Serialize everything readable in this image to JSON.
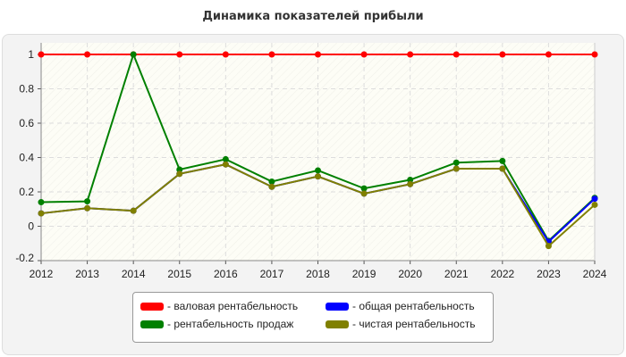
{
  "chart_data": {
    "type": "line",
    "title": "Динамика показателей прибыли",
    "x": [
      "2012",
      "2013",
      "2014",
      "2015",
      "2016",
      "2017",
      "2018",
      "2019",
      "2020",
      "2021",
      "2022",
      "2023",
      "2024"
    ],
    "ylim": [
      -0.2,
      1
    ],
    "yticks": [
      "-0.2",
      "0",
      "0.2",
      "0.4",
      "0.6",
      "0.8",
      "1"
    ],
    "grid": true,
    "legend_position": "bottom",
    "series": [
      {
        "name": "- валовая рентабельность",
        "color": "#ff0000",
        "values": [
          1,
          1,
          1,
          1,
          1,
          1,
          1,
          1,
          1,
          1,
          1,
          1,
          1
        ]
      },
      {
        "name": "- общая рентабельность",
        "color": "#0000ff",
        "values": [
          0.075,
          0.105,
          0.09,
          0.305,
          0.36,
          0.23,
          0.29,
          0.19,
          0.245,
          0.335,
          0.335,
          -0.09,
          0.16
        ]
      },
      {
        "name": "- рентабельность продаж",
        "color": "#008000",
        "values": [
          0.14,
          0.145,
          1,
          0.33,
          0.39,
          0.26,
          0.325,
          0.22,
          0.27,
          0.37,
          0.38,
          -0.085,
          0.165
        ]
      },
      {
        "name": "- чистая рентабельность",
        "color": "#808000",
        "values": [
          0.075,
          0.105,
          0.09,
          0.305,
          0.36,
          0.23,
          0.29,
          0.19,
          0.245,
          0.335,
          0.335,
          -0.115,
          0.125
        ]
      }
    ]
  }
}
